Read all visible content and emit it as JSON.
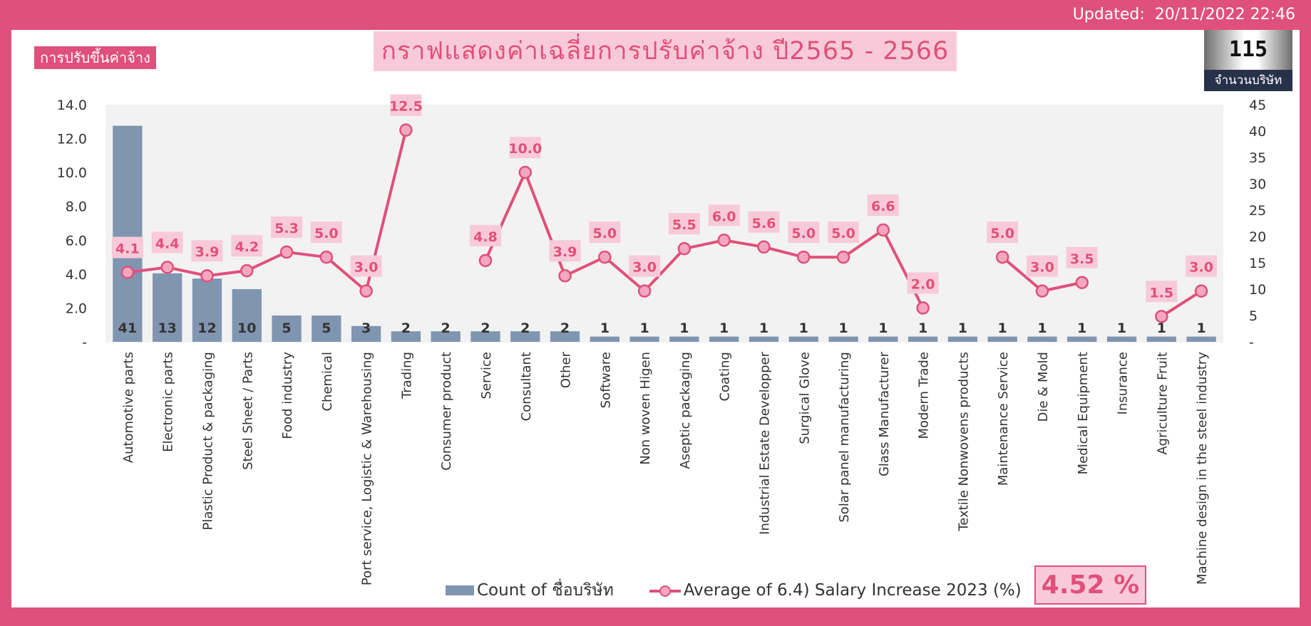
{
  "header": {
    "updated_label": "Updated:",
    "updated_value": "20/11/2022 22:46"
  },
  "badge": {
    "label": "การปรับขึ้นค่าจ้าง"
  },
  "title": "กราฟแสดงค่าเฉลี่ยการปรับค่าจ้าง ปี2565 - 2566",
  "company_count": {
    "value": "115",
    "label": "จำนวนบริษัท"
  },
  "average_box": {
    "value": "4.52 %"
  },
  "colors": {
    "accent": "#e0507c",
    "bar": "#8095b0",
    "label_bg": "#f8cad9",
    "plot_bg": "#f2f2f2"
  },
  "chart_data": {
    "type": "bar",
    "title": "",
    "xlabel": "",
    "ylabel": "",
    "legend_position": "bottom",
    "categories": [
      "Automotive parts",
      "Electronic parts",
      "Plastic Product & packaging",
      "Steel Sheet / Parts",
      "Food industry",
      "Chemical",
      "Port service, Logistic & Warehousing",
      "Trading",
      "Consumer product",
      "Service",
      "Consultant",
      "Other",
      "Software",
      "Non woven Higen",
      "Aseptic packaging",
      "Coating",
      "Industrial Estate Developper",
      "Surgical Glove",
      "Solar panel manufacturing",
      "Glass Manufacturer",
      "Modern Trade",
      "Textile Nonwovens products",
      "Maintenance Service",
      "Die & Mold",
      "Medical Equipment",
      "Insurance",
      "Agriculture Fruit",
      "Machine design in the steel industry"
    ],
    "series": [
      {
        "name": "Count of ชื่อบริษัท",
        "type": "bar",
        "axis": "right",
        "values": [
          41,
          13,
          12,
          10,
          5,
          5,
          3,
          2,
          2,
          2,
          2,
          2,
          1,
          1,
          1,
          1,
          1,
          1,
          1,
          1,
          1,
          1,
          1,
          1,
          1,
          1,
          1,
          1
        ]
      },
      {
        "name": "Average of 6.4) Salary Increase 2023 (%)",
        "type": "line",
        "axis": "left",
        "values": [
          4.1,
          4.4,
          3.9,
          4.2,
          5.3,
          5.0,
          3.0,
          12.5,
          null,
          4.8,
          10.0,
          3.9,
          5.0,
          3.0,
          5.5,
          6.0,
          5.6,
          5.0,
          5.0,
          6.6,
          2.0,
          null,
          5.0,
          3.0,
          3.5,
          null,
          1.5,
          3.0
        ]
      }
    ],
    "left_axis": {
      "ylim": [
        0,
        14
      ],
      "ticks": [
        "-",
        "2.0",
        "4.0",
        "6.0",
        "8.0",
        "10.0",
        "12.0",
        "14.0"
      ]
    },
    "right_axis": {
      "ylim": [
        0,
        45
      ],
      "ticks": [
        "-",
        "5",
        "10",
        "15",
        "20",
        "25",
        "30",
        "35",
        "40",
        "45"
      ]
    },
    "grid": false
  }
}
